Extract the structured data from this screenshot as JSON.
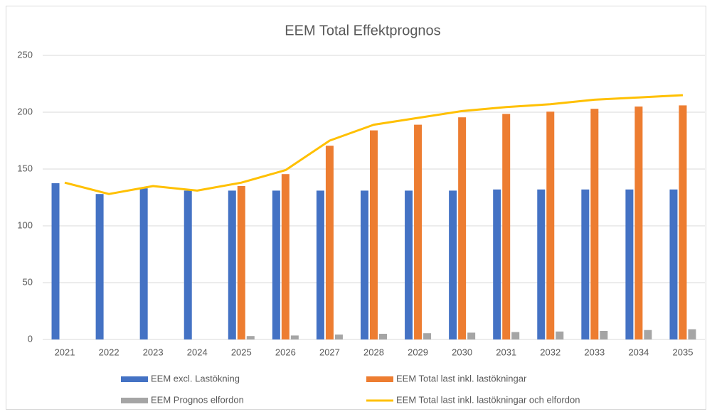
{
  "chart_data": {
    "type": "bar_line",
    "title": "EEM Total Effektprognos",
    "categories": [
      "2021",
      "2022",
      "2023",
      "2024",
      "2025",
      "2026",
      "2027",
      "2028",
      "2029",
      "2030",
      "2031",
      "2032",
      "2033",
      "2034",
      "2035"
    ],
    "series": [
      {
        "name": "EEM excl. Lastökning",
        "color": "#4472c4",
        "kind": "bar",
        "values": [
          137.5,
          128,
          133,
          131,
          131,
          131,
          131,
          131,
          131,
          131,
          132,
          132,
          132,
          132,
          132
        ]
      },
      {
        "name": "EEM Total last inkl. lastökningar",
        "color": "#ed7d31",
        "kind": "bar",
        "values": [
          null,
          null,
          null,
          null,
          135,
          145.5,
          170.5,
          184,
          189,
          195.5,
          198.5,
          200.5,
          203,
          205,
          206
        ]
      },
      {
        "name": "EEM Prognos elfordon",
        "color": "#a5a5a5",
        "kind": "bar",
        "values": [
          null,
          null,
          null,
          null,
          3,
          3.5,
          4.3,
          5,
          5.5,
          6,
          6.5,
          7,
          7.5,
          8.3,
          9
        ]
      },
      {
        "name": "EEM Total last inkl. lastökningar och elfordon",
        "color": "#ffc000",
        "kind": "line",
        "values": [
          138,
          128,
          135,
          131,
          138,
          149,
          175,
          189,
          195,
          201,
          204.5,
          207,
          211,
          213,
          215
        ]
      }
    ],
    "ylim": [
      0,
      250
    ],
    "yticks": [
      0,
      50,
      100,
      150,
      200,
      250
    ],
    "grid": true
  }
}
